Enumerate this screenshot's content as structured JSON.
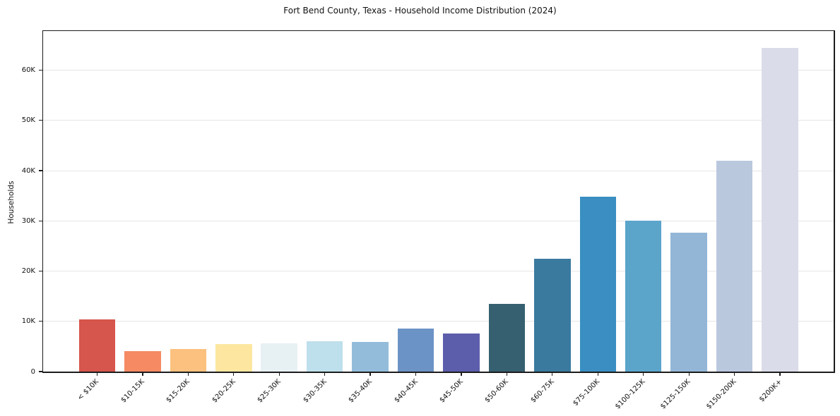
{
  "chart_data": {
    "type": "bar",
    "title": "Fort Bend County, Texas - Household Income Distribution (2024)",
    "xlabel": "",
    "ylabel": "Households",
    "categories": [
      "< $10K",
      "$10-15K",
      "$15-20K",
      "$20-25K",
      "$25-30K",
      "$30-35K",
      "$35-40K",
      "$40-45K",
      "$45-50K",
      "$50-60K",
      "$60-75K",
      "$75-100K",
      "$100-125K",
      "$125-150K",
      "$150-200K",
      "$200K+"
    ],
    "values": [
      10400,
      4100,
      4500,
      5500,
      5600,
      6000,
      5900,
      8500,
      7600,
      13500,
      22400,
      34800,
      30000,
      27600,
      42000,
      64500
    ],
    "bar_colors": [
      "#d6554c",
      "#f58a63",
      "#fcc17e",
      "#fde7a0",
      "#e7f1f4",
      "#bedfec",
      "#93bcda",
      "#6c93c6",
      "#5c5dab",
      "#366070",
      "#3a7a9e",
      "#3a8ec1",
      "#5ba4ca",
      "#93b6d6",
      "#bac8de",
      "#dadce9"
    ],
    "yticks": [
      {
        "value": 0,
        "label": "0"
      },
      {
        "value": 10000,
        "label": "10K"
      },
      {
        "value": 20000,
        "label": "20K"
      },
      {
        "value": 30000,
        "label": "30K"
      },
      {
        "value": 40000,
        "label": "40K"
      },
      {
        "value": 50000,
        "label": "50K"
      },
      {
        "value": 60000,
        "label": "60K"
      }
    ],
    "ylim": [
      0,
      67800
    ],
    "grid": true,
    "grid_color": "#e6e6e6",
    "spine_color": "#1c1c1c",
    "background_color": "#ffffff",
    "legend": false
  }
}
